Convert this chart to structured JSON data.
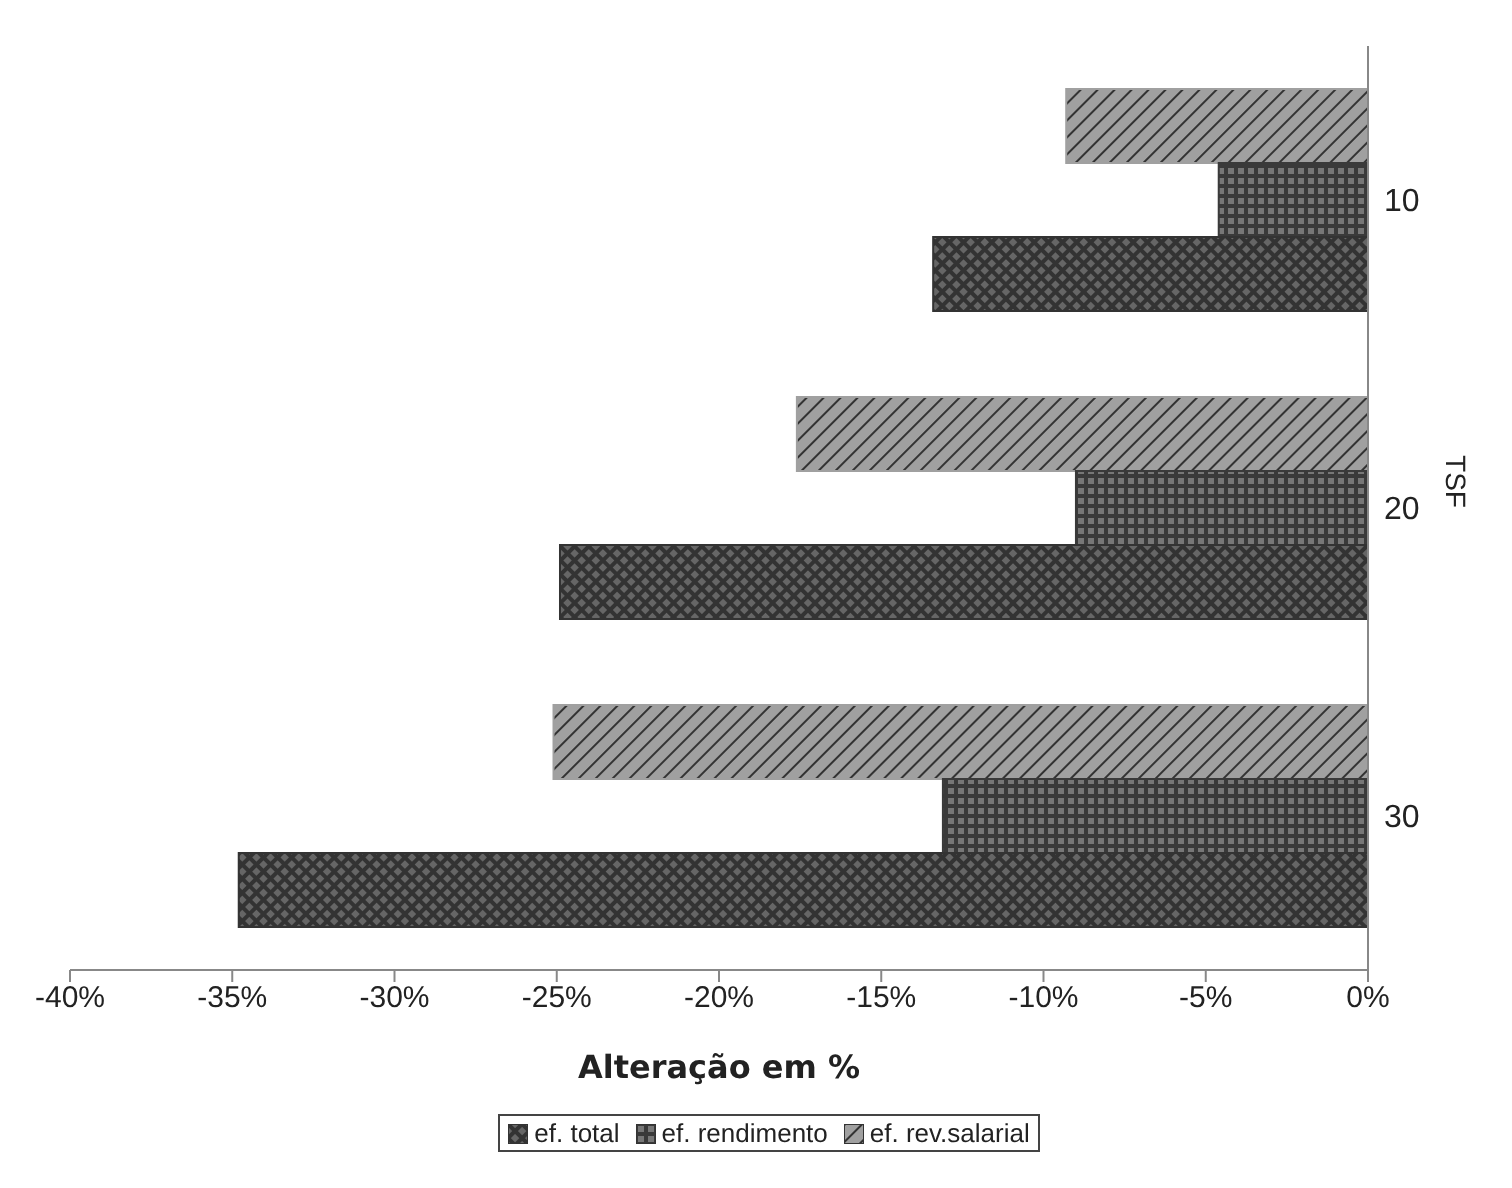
{
  "chart_data": {
    "type": "bar",
    "orientation": "horizontal",
    "xlabel": "Alteração em %",
    "ylabel": "TSF",
    "categories": [
      "10",
      "20",
      "30"
    ],
    "series": [
      {
        "name": "ef. total",
        "color": "#333333",
        "values": [
          -13.4,
          -24.9,
          -34.8
        ]
      },
      {
        "name": "ef. rendimento",
        "color": "#3a3a3a",
        "values": [
          -4.6,
          -9.0,
          -13.1
        ]
      },
      {
        "name": "ef. rev.salarial",
        "color": "#a0a0a0",
        "values": [
          -9.3,
          -17.6,
          -25.1
        ]
      }
    ],
    "xlim": [
      -40,
      0
    ],
    "xticks": [
      {
        "value": -40,
        "label": "-40%"
      },
      {
        "value": -35,
        "label": "-35%"
      },
      {
        "value": -30,
        "label": "-30%"
      },
      {
        "value": -25,
        "label": "-25%"
      },
      {
        "value": -20,
        "label": "-20%"
      },
      {
        "value": -15,
        "label": "-15%"
      },
      {
        "value": -10,
        "label": "-10%"
      },
      {
        "value": -5,
        "label": "-5%"
      },
      {
        "value": 0,
        "label": "0%"
      }
    ],
    "grid": false,
    "legend": "bottom"
  }
}
